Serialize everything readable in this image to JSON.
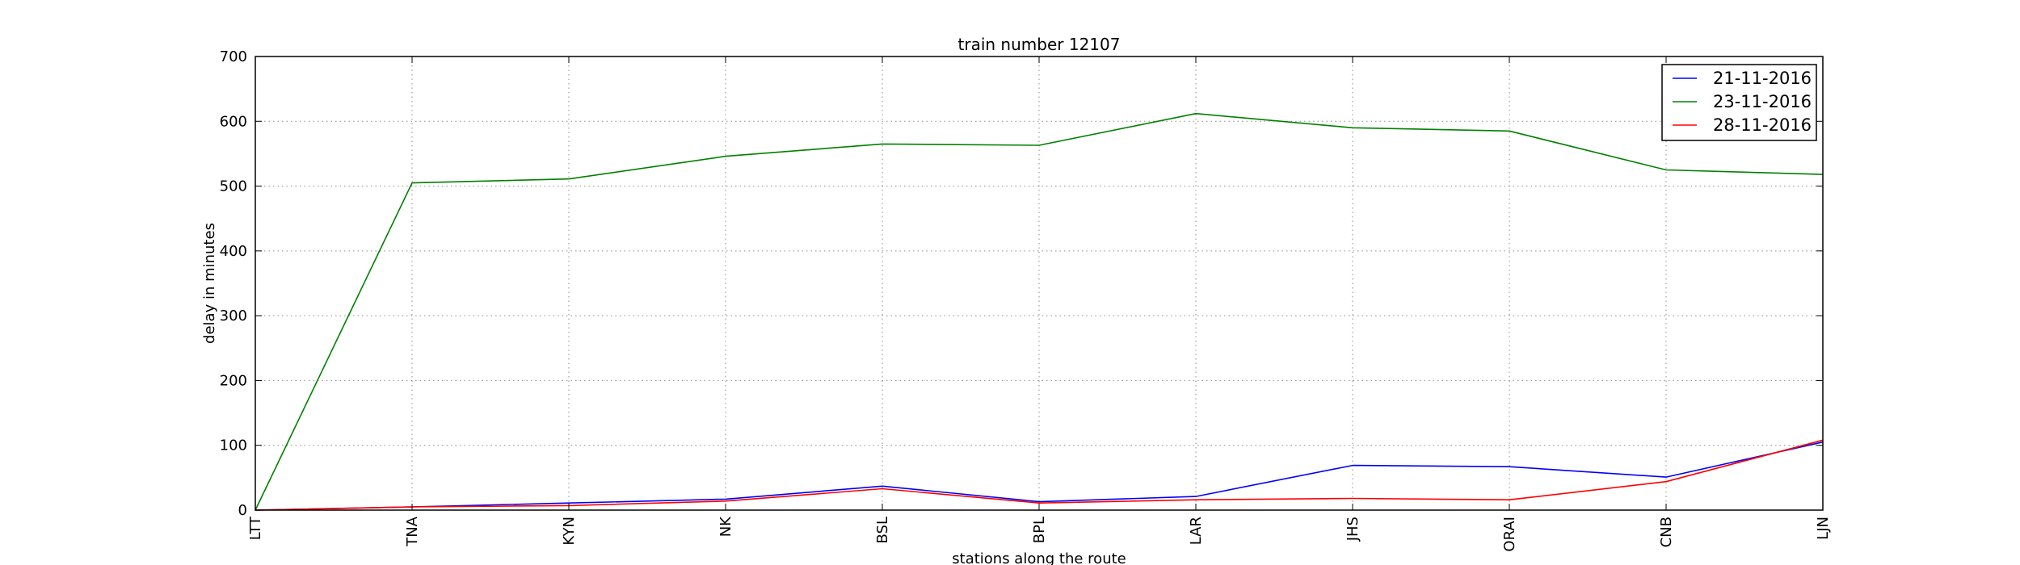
{
  "chart_data": {
    "type": "line",
    "title": "train number 12107",
    "xlabel": "stations along the route",
    "ylabel": "delay in minutes",
    "categories": [
      "LTT",
      "TNA",
      "KYN",
      "NK",
      "BSL",
      "BPL",
      "LAR",
      "JHS",
      "ORAI",
      "CNB",
      "LJN"
    ],
    "ylim": [
      0,
      700
    ],
    "yticks": [
      0,
      100,
      200,
      300,
      400,
      500,
      600,
      700
    ],
    "grid": true,
    "legend_position": "top-right",
    "series": [
      {
        "name": "21-11-2016",
        "color": "#0000ff",
        "values": [
          0,
          5,
          11,
          17,
          37,
          13,
          21,
          69,
          67,
          51,
          105
        ]
      },
      {
        "name": "23-11-2016",
        "color": "#008000",
        "values": [
          0,
          505,
          511,
          546,
          565,
          563,
          612,
          590,
          585,
          525,
          518
        ]
      },
      {
        "name": "28-11-2016",
        "color": "#ff0000",
        "values": [
          0,
          5,
          7,
          14,
          33,
          11,
          16,
          18,
          16,
          44,
          108
        ]
      }
    ]
  }
}
